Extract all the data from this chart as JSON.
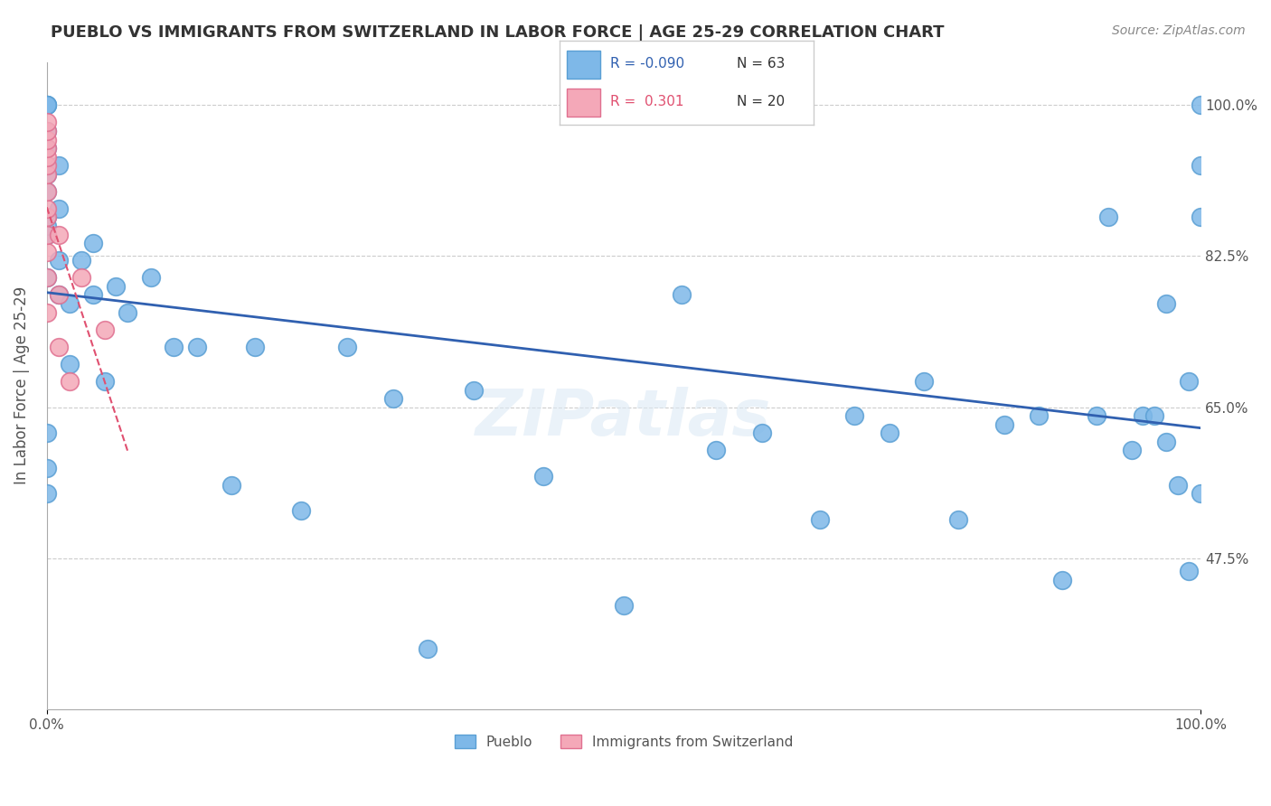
{
  "title": "PUEBLO VS IMMIGRANTS FROM SWITZERLAND IN LABOR FORCE | AGE 25-29 CORRELATION CHART",
  "source_text": "Source: ZipAtlas.com",
  "ylabel": "In Labor Force | Age 25-29",
  "xlim": [
    0.0,
    1.0
  ],
  "ylim": [
    0.3,
    1.05
  ],
  "yticks": [
    0.475,
    0.65,
    0.825,
    1.0
  ],
  "ytick_labels": [
    "47.5%",
    "65.0%",
    "82.5%",
    "100.0%"
  ],
  "legend_pueblo_r": "-0.090",
  "legend_pueblo_n": "63",
  "legend_swiss_r": "0.301",
  "legend_swiss_n": "20",
  "pueblo_color": "#7eb8e8",
  "pueblo_edge": "#5a9fd4",
  "swiss_color": "#f4a8b8",
  "swiss_edge": "#e07090",
  "trend_pueblo_color": "#3060b0",
  "trend_swiss_color": "#e05070",
  "pueblo_points_x": [
    0.0,
    0.0,
    0.0,
    0.0,
    0.0,
    0.0,
    0.0,
    0.0,
    0.0,
    0.0,
    0.0,
    0.0,
    0.0,
    0.0,
    0.01,
    0.01,
    0.01,
    0.01,
    0.02,
    0.02,
    0.03,
    0.04,
    0.04,
    0.05,
    0.06,
    0.07,
    0.09,
    0.11,
    0.13,
    0.16,
    0.18,
    0.22,
    0.26,
    0.3,
    0.33,
    0.37,
    0.43,
    0.5,
    0.55,
    0.58,
    0.62,
    0.67,
    0.7,
    0.73,
    0.76,
    0.79,
    0.83,
    0.86,
    0.88,
    0.91,
    0.92,
    0.94,
    0.95,
    0.96,
    0.97,
    0.97,
    0.98,
    0.99,
    0.99,
    1.0,
    1.0,
    1.0,
    1.0
  ],
  "pueblo_points_y": [
    0.55,
    0.58,
    0.62,
    0.8,
    0.85,
    0.86,
    0.87,
    0.9,
    0.92,
    0.95,
    0.97,
    1.0,
    1.0,
    1.0,
    0.78,
    0.82,
    0.88,
    0.93,
    0.7,
    0.77,
    0.82,
    0.78,
    0.84,
    0.68,
    0.79,
    0.76,
    0.8,
    0.72,
    0.72,
    0.56,
    0.72,
    0.53,
    0.72,
    0.66,
    0.37,
    0.67,
    0.57,
    0.42,
    0.78,
    0.6,
    0.62,
    0.52,
    0.64,
    0.62,
    0.68,
    0.52,
    0.63,
    0.64,
    0.45,
    0.64,
    0.87,
    0.6,
    0.64,
    0.64,
    0.61,
    0.77,
    0.56,
    0.46,
    0.68,
    0.55,
    0.87,
    0.93,
    1.0
  ],
  "swiss_points_x": [
    0.0,
    0.0,
    0.0,
    0.0,
    0.0,
    0.0,
    0.0,
    0.0,
    0.0,
    0.0,
    0.0,
    0.0,
    0.0,
    0.0,
    0.01,
    0.01,
    0.01,
    0.02,
    0.03,
    0.05
  ],
  "swiss_points_y": [
    0.76,
    0.8,
    0.83,
    0.85,
    0.87,
    0.88,
    0.9,
    0.92,
    0.93,
    0.94,
    0.95,
    0.96,
    0.97,
    0.98,
    0.72,
    0.78,
    0.85,
    0.68,
    0.8,
    0.74
  ],
  "background_color": "#ffffff",
  "grid_color": "#cccccc",
  "title_color": "#333333",
  "label_color": "#555555"
}
